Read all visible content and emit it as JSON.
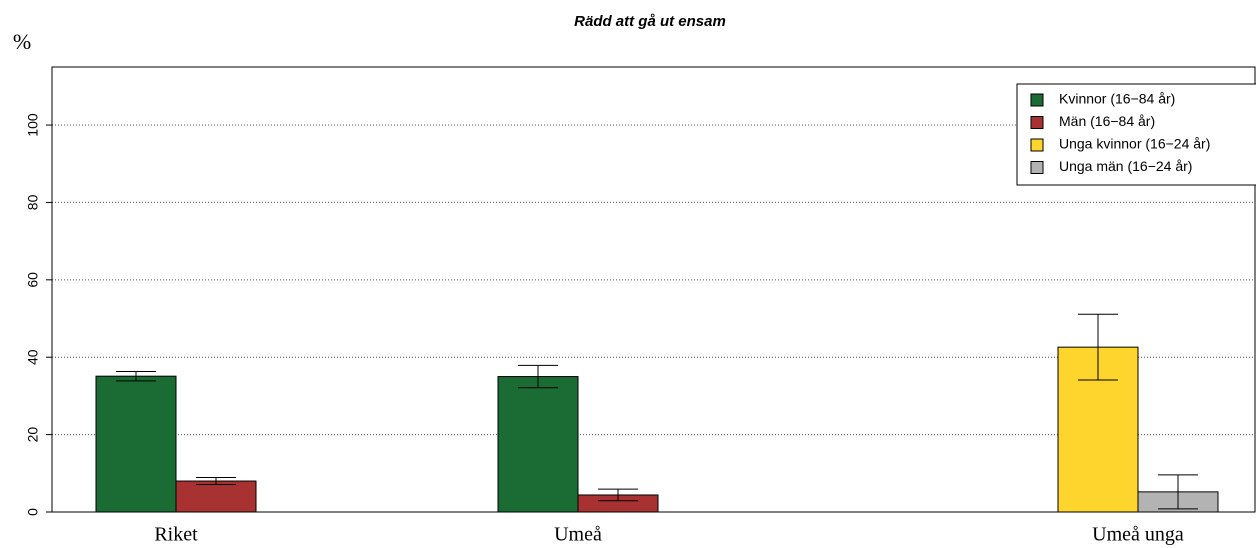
{
  "chart_data": {
    "type": "bar",
    "title": "Rädd att gå ut ensam",
    "y_label": "%",
    "categories": [
      "Riket",
      "Umeå",
      "Umeå unga"
    ],
    "series": [
      {
        "name": "Kvinnor (16−84 år)",
        "color": "#1b6b35",
        "values": [
          35.1,
          35.0,
          null
        ],
        "errors": [
          1.2,
          2.9,
          null
        ]
      },
      {
        "name": "Män (16−84 år)",
        "color": "#a83232",
        "values": [
          8.0,
          4.4,
          null
        ],
        "errors": [
          0.9,
          1.5,
          null
        ]
      },
      {
        "name": "Unga kvinnor (16−24 år)",
        "color": "#fdd52c",
        "values": [
          null,
          null,
          42.6
        ],
        "errors": [
          null,
          null,
          8.5
        ]
      },
      {
        "name": "Unga män (16−24 år)",
        "color": "#b3b3b3",
        "values": [
          null,
          null,
          5.2
        ],
        "errors": [
          null,
          null,
          4.4
        ]
      }
    ],
    "ylim": [
      0,
      115
    ],
    "yticks": [
      0,
      20,
      40,
      60,
      80,
      100
    ],
    "grid": true,
    "legend": "top-right"
  }
}
